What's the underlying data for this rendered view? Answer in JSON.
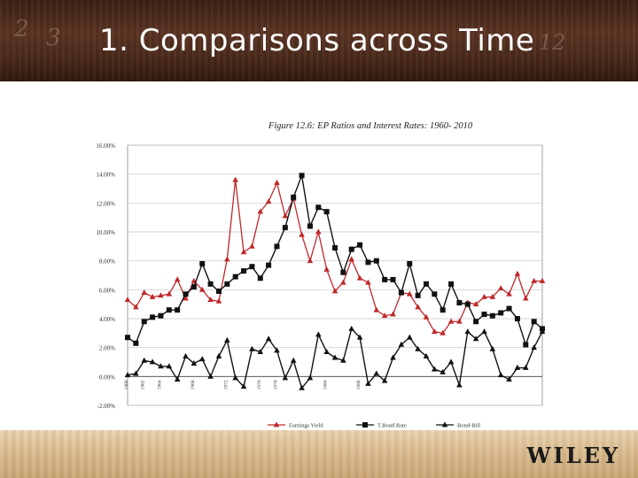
{
  "slide": {
    "title": "1. Comparisons across Time",
    "logo": "WILEY",
    "scrawl": [
      "2",
      "3",
      "12"
    ]
  },
  "colors": {
    "earnings_yield": "#c0282a",
    "tbond_rate": "#111111",
    "bond_bill": "#111111"
  },
  "chart_data": {
    "type": "line",
    "title": "Figure 12.6: EP Ratios and Interest Rates: 1960- 2010",
    "xlabel": "",
    "ylabel": "",
    "ylim": [
      -2,
      16
    ],
    "yticks": [
      "-2.00%",
      "0.00%",
      "2.00%",
      "4.00%",
      "6.00%",
      "8.00%",
      "10.00%",
      "12.00%",
      "14.00%",
      "16.00%"
    ],
    "x": [
      1960,
      1961,
      1962,
      1963,
      1964,
      1965,
      1966,
      1967,
      1968,
      1969,
      1970,
      1971,
      1972,
      1973,
      1974,
      1975,
      1976,
      1977,
      1978,
      1979,
      1980,
      1981,
      1982,
      1983,
      1984,
      1985,
      1986,
      1987,
      1988,
      1989,
      1990,
      1991,
      1992,
      1993,
      1994,
      1995,
      1996,
      1997,
      1998,
      1999,
      2000,
      2001,
      2002,
      2003,
      2004,
      2005,
      2006,
      2007,
      2008,
      2009,
      2010
    ],
    "xtick_labels": [
      {
        "x": 1960,
        "label": "1960"
      },
      {
        "x": 1962,
        "label": "1962"
      },
      {
        "x": 1964,
        "label": "1964"
      },
      {
        "x": 1968,
        "label": "1968"
      },
      {
        "x": 1972,
        "label": "1972"
      },
      {
        "x": 1976,
        "label": "1976"
      },
      {
        "x": 1978,
        "label": "1978"
      },
      {
        "x": 1984,
        "label": "1984"
      },
      {
        "x": 1988,
        "label": "1988"
      }
    ],
    "series": [
      {
        "name": "Earnings Yield",
        "marker": "triangle",
        "values": [
          5.3,
          4.8,
          5.8,
          5.5,
          5.6,
          5.7,
          6.7,
          5.4,
          6.6,
          6.0,
          5.3,
          5.2,
          8.1,
          13.6,
          8.6,
          9.0,
          11.4,
          12.1,
          13.4,
          11.1,
          12.3,
          9.8,
          8.0,
          10.0,
          7.4,
          5.9,
          6.5,
          8.1,
          6.8,
          6.5,
          4.6,
          4.2,
          4.3,
          5.8,
          5.7,
          4.8,
          4.1,
          3.1,
          3.0,
          3.8,
          3.8,
          5.1,
          5.0,
          5.5,
          5.5,
          6.1,
          5.7,
          7.1,
          5.4,
          6.6,
          6.6
        ]
      },
      {
        "name": "T.Bond Rate",
        "marker": "square",
        "values": [
          2.7,
          2.3,
          3.8,
          4.1,
          4.2,
          4.6,
          4.6,
          5.7,
          6.2,
          7.8,
          6.4,
          5.9,
          6.4,
          6.9,
          7.3,
          7.6,
          6.8,
          7.7,
          9.0,
          10.3,
          12.4,
          13.9,
          10.4,
          11.7,
          11.4,
          8.9,
          7.2,
          8.8,
          9.1,
          7.9,
          8.0,
          6.7,
          6.7,
          5.8,
          7.8,
          5.6,
          6.4,
          5.7,
          4.6,
          6.4,
          5.1,
          5.0,
          3.8,
          4.3,
          4.2,
          4.4,
          4.7,
          4.0,
          2.2,
          3.8,
          3.3
        ]
      },
      {
        "name": "Bond-Bill",
        "marker": "triangle",
        "values": [
          0.1,
          0.2,
          1.1,
          1.0,
          0.7,
          0.7,
          -0.2,
          1.4,
          0.9,
          1.2,
          0.0,
          1.4,
          2.5,
          -0.1,
          -0.7,
          1.9,
          1.7,
          2.6,
          1.8,
          -0.1,
          1.1,
          -0.8,
          -0.1,
          2.9,
          1.7,
          1.3,
          1.1,
          3.3,
          2.7,
          -0.5,
          0.2,
          -0.3,
          1.3,
          2.2,
          2.7,
          1.9,
          1.4,
          0.5,
          0.3,
          1.0,
          -0.6,
          3.1,
          2.6,
          3.1,
          1.9,
          0.1,
          -0.2,
          0.6,
          0.6,
          2.0,
          3.1
        ]
      }
    ],
    "legend": "bottom"
  }
}
